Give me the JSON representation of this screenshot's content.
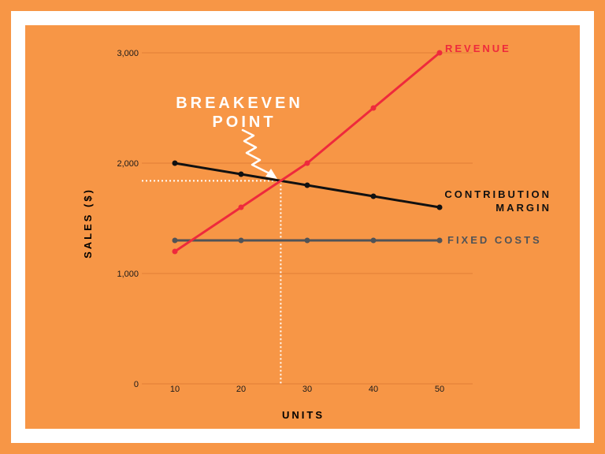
{
  "colors": {
    "background": "#f79646",
    "frame": "#ffffff",
    "grid": "#e07f36",
    "revenue": "#ee2a3c",
    "contribution": "#111111",
    "fixed": "#505357",
    "annotation": "#ffffff"
  },
  "chart_data": {
    "type": "line",
    "title": "",
    "xlabel": "UNITS",
    "ylabel": "SALES ($)",
    "x": [
      10,
      20,
      30,
      40,
      50
    ],
    "xlim": [
      5,
      55
    ],
    "ylim": [
      0,
      3000
    ],
    "y_ticks": [
      0,
      1000,
      2000,
      3000
    ],
    "y_tick_labels": [
      "0",
      "1,000",
      "2,000",
      "3,000"
    ],
    "x_tick_labels": [
      "10",
      "20",
      "30",
      "40",
      "50"
    ],
    "grid": true,
    "series": [
      {
        "name": "REVENUE",
        "values": [
          1200,
          1600,
          2000,
          2500,
          3000
        ],
        "color": "#ee2a3c"
      },
      {
        "name": "CONTRIBUTION MARGIN",
        "values": [
          2000,
          1900,
          1800,
          1700,
          1600
        ],
        "color": "#111111"
      },
      {
        "name": "FIXED COSTS",
        "values": [
          1300,
          1300,
          1300,
          1300,
          1300
        ],
        "color": "#505357"
      }
    ],
    "series_label_lines": [
      [
        "REVENUE"
      ],
      [
        "CONTRIBUTION",
        "MARGIN"
      ],
      [
        "FIXED COSTS"
      ]
    ],
    "annotation": {
      "lines": [
        "BREAKEVEN",
        "POINT"
      ],
      "x": 26,
      "y": 1840
    }
  }
}
